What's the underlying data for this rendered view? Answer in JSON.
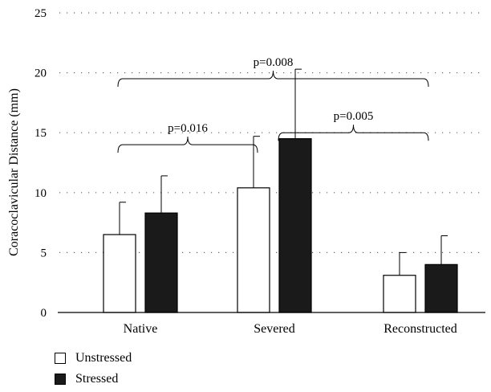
{
  "chart_data": {
    "type": "bar",
    "categories": [
      "Native",
      "Severed",
      "Reconstructed"
    ],
    "series": [
      {
        "name": "Unstressed",
        "values": [
          6.5,
          10.4,
          3.1
        ],
        "errors": [
          2.7,
          4.3,
          1.9
        ],
        "color": "#ffffff"
      },
      {
        "name": "Stressed",
        "values": [
          8.3,
          14.5,
          4.0
        ],
        "errors": [
          3.1,
          5.8,
          2.4
        ],
        "color": "#1a1a1a"
      }
    ],
    "ylabel": "Coracoclavicular Distance (mm)",
    "xlabel": "",
    "ylim": [
      0,
      25
    ],
    "yticks": [
      0,
      5,
      10,
      15,
      20,
      25
    ],
    "grid": "dotted horizontal",
    "legend_position": "bottom-left",
    "annotations": [
      {
        "text": "p=0.016",
        "from_category": 0,
        "to_category": 1,
        "level": 14
      },
      {
        "text": "p=0.008",
        "from_category": 0,
        "to_category": 2,
        "level": 19.5
      },
      {
        "text": "p=0.005",
        "from_category": 1,
        "to_category": 2,
        "level": 15
      }
    ]
  }
}
